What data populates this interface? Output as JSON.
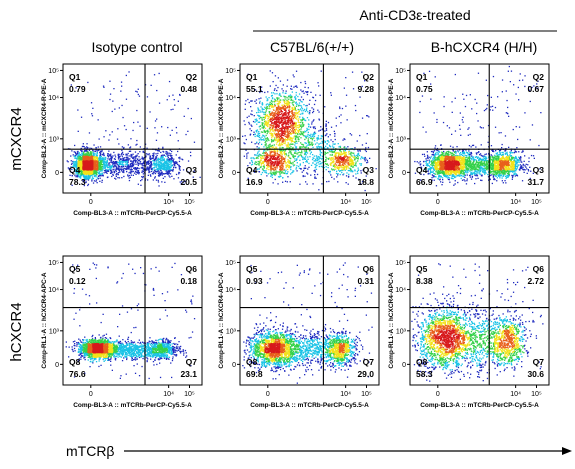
{
  "header": {
    "treatment_group": "Anti-CD3ε-treated",
    "columns": [
      "Isotype control",
      "C57BL/6(+/+)",
      "B-hCXCR4 (H/H)"
    ]
  },
  "row_labels": [
    "mCXCR4",
    "hCXCR4"
  ],
  "bottom_axis_label": "mTCRβ",
  "colors": {
    "density_low": "#1f2bbf",
    "density_mid_low": "#19c3e6",
    "density_mid": "#35d14a",
    "density_mid_high": "#f2e21b",
    "density_high": "#e8601c",
    "density_peak": "#d7191c",
    "gate_lines": "#000000"
  },
  "chart_data": [
    {
      "type": "scatter",
      "style": "flow-cytometry-density",
      "row": 0,
      "col": 0,
      "xlabel": "Comp-BL3-A :: mTCRb-PerCP-Cy5.5-A",
      "ylabel": "Comp-BL2-A :: mCXCR4-R-PE-A",
      "xticks": [
        "0",
        "10⁴",
        "10⁵"
      ],
      "yticks": [
        "0",
        "10³",
        "10⁴",
        "10⁵"
      ],
      "quadrants": [
        {
          "name": "Q1",
          "value": "0.79"
        },
        {
          "name": "Q2",
          "value": "0.48"
        },
        {
          "name": "Q4",
          "value": "78.3"
        },
        {
          "name": "Q3",
          "value": "20.5"
        }
      ],
      "clusters": [
        {
          "fx": 0.18,
          "fy": 0.78,
          "sx": 0.05,
          "sy": 0.05,
          "w": 0.56
        },
        {
          "fx": 0.4,
          "fy": 0.78,
          "sx": 0.15,
          "sy": 0.05,
          "w": 0.26
        },
        {
          "fx": 0.72,
          "fy": 0.78,
          "sx": 0.06,
          "sy": 0.05,
          "w": 0.16
        },
        {
          "fx": 0.45,
          "fy": 0.45,
          "sx": 0.25,
          "sy": 0.2,
          "w": 0.02
        }
      ]
    },
    {
      "type": "scatter",
      "style": "flow-cytometry-density",
      "row": 0,
      "col": 1,
      "xlabel": "Comp-BL3-A :: mTCRb-PerCP-Cy5.5-A",
      "ylabel": "Comp-BL2-A :: mCXCR4-R-PE-A",
      "xticks": [
        "0",
        "10⁴",
        "10⁵"
      ],
      "yticks": [
        "0",
        "10³",
        "10⁴",
        "10⁵"
      ],
      "quadrants": [
        {
          "name": "Q1",
          "value": "55.1"
        },
        {
          "name": "Q2",
          "value": "9.28"
        },
        {
          "name": "Q4",
          "value": "16.9"
        },
        {
          "name": "Q3",
          "value": "18.8"
        }
      ],
      "clusters": [
        {
          "fx": 0.3,
          "fy": 0.45,
          "sx": 0.1,
          "sy": 0.12,
          "w": 0.5
        },
        {
          "fx": 0.25,
          "fy": 0.75,
          "sx": 0.08,
          "sy": 0.06,
          "w": 0.2
        },
        {
          "fx": 0.55,
          "fy": 0.68,
          "sx": 0.12,
          "sy": 0.12,
          "w": 0.15
        },
        {
          "fx": 0.75,
          "fy": 0.75,
          "sx": 0.07,
          "sy": 0.05,
          "w": 0.15
        }
      ]
    },
    {
      "type": "scatter",
      "style": "flow-cytometry-density",
      "row": 0,
      "col": 2,
      "xlabel": "Comp-BL3-A :: mTCRb-PerCP-Cy5.5-A",
      "ylabel": "Comp-BL2-A :: mCXCR4-R-PE-A",
      "xticks": [
        "0",
        "10⁴",
        "10⁵"
      ],
      "yticks": [
        "0",
        "10³",
        "10⁴",
        "10⁵"
      ],
      "quadrants": [
        {
          "name": "Q1",
          "value": "0.75"
        },
        {
          "name": "Q2",
          "value": "0.67"
        },
        {
          "name": "Q4",
          "value": "66.9"
        },
        {
          "name": "Q3",
          "value": "31.7"
        }
      ],
      "clusters": [
        {
          "fx": 0.28,
          "fy": 0.78,
          "sx": 0.08,
          "sy": 0.05,
          "w": 0.5
        },
        {
          "fx": 0.68,
          "fy": 0.78,
          "sx": 0.07,
          "sy": 0.05,
          "w": 0.3
        },
        {
          "fx": 0.5,
          "fy": 0.78,
          "sx": 0.1,
          "sy": 0.05,
          "w": 0.18
        },
        {
          "fx": 0.5,
          "fy": 0.5,
          "sx": 0.25,
          "sy": 0.2,
          "w": 0.02
        }
      ]
    },
    {
      "type": "scatter",
      "style": "flow-cytometry-density",
      "row": 1,
      "col": 0,
      "xlabel": "Comp-BL3-A :: mTCRb-PerCP-Cy5.5-A",
      "ylabel": "Comp-RL1-A :: hCXCR4-APC-A",
      "xticks": [
        "0",
        "10⁴",
        "10⁵"
      ],
      "yticks": [
        "0",
        "10³",
        "10⁴",
        "10⁵"
      ],
      "quadrants": [
        {
          "name": "Q5",
          "value": "0.12"
        },
        {
          "name": "Q6",
          "value": "0.18"
        },
        {
          "name": "Q8",
          "value": "76.6"
        },
        {
          "name": "Q7",
          "value": "23.1"
        }
      ],
      "clusters": [
        {
          "fx": 0.25,
          "fy": 0.72,
          "sx": 0.07,
          "sy": 0.035,
          "w": 0.55
        },
        {
          "fx": 0.5,
          "fy": 0.73,
          "sx": 0.15,
          "sy": 0.035,
          "w": 0.3
        },
        {
          "fx": 0.72,
          "fy": 0.72,
          "sx": 0.05,
          "sy": 0.035,
          "w": 0.15
        }
      ]
    },
    {
      "type": "scatter",
      "style": "flow-cytometry-density",
      "row": 1,
      "col": 1,
      "xlabel": "Comp-BL3-A :: mTCRb-PerCP-Cy5.5-A",
      "ylabel": "Comp-RL1-A :: hCXCR4-APC-A",
      "xticks": [
        "0",
        "10⁴",
        "10⁵"
      ],
      "yticks": [
        "0",
        "10³",
        "10⁴",
        "10⁵"
      ],
      "quadrants": [
        {
          "name": "Q5",
          "value": "0.93"
        },
        {
          "name": "Q6",
          "value": "0.31"
        },
        {
          "name": "Q8",
          "value": "69.8"
        },
        {
          "name": "Q7",
          "value": "29.0"
        }
      ],
      "clusters": [
        {
          "fx": 0.25,
          "fy": 0.72,
          "sx": 0.09,
          "sy": 0.07,
          "w": 0.55
        },
        {
          "fx": 0.72,
          "fy": 0.73,
          "sx": 0.06,
          "sy": 0.06,
          "w": 0.25
        },
        {
          "fx": 0.5,
          "fy": 0.72,
          "sx": 0.12,
          "sy": 0.07,
          "w": 0.2
        }
      ]
    },
    {
      "type": "scatter",
      "style": "flow-cytometry-density",
      "row": 1,
      "col": 2,
      "xlabel": "Comp-BL3-A :: mTCRb-PerCP-Cy5.5-A",
      "ylabel": "Comp-RL1-A :: hCXCR4-APC-A",
      "xticks": [
        "0",
        "10⁴",
        "10⁵"
      ],
      "yticks": [
        "0",
        "10³",
        "10⁴",
        "10⁵"
      ],
      "quadrants": [
        {
          "name": "Q5",
          "value": "8.38"
        },
        {
          "name": "Q6",
          "value": "2.72"
        },
        {
          "name": "Q8",
          "value": "58.3"
        },
        {
          "name": "Q7",
          "value": "30.6"
        }
      ],
      "clusters": [
        {
          "fx": 0.25,
          "fy": 0.64,
          "sx": 0.1,
          "sy": 0.12,
          "w": 0.55
        },
        {
          "fx": 0.7,
          "fy": 0.66,
          "sx": 0.07,
          "sy": 0.1,
          "w": 0.28
        },
        {
          "fx": 0.48,
          "fy": 0.65,
          "sx": 0.1,
          "sy": 0.12,
          "w": 0.17
        }
      ]
    }
  ]
}
